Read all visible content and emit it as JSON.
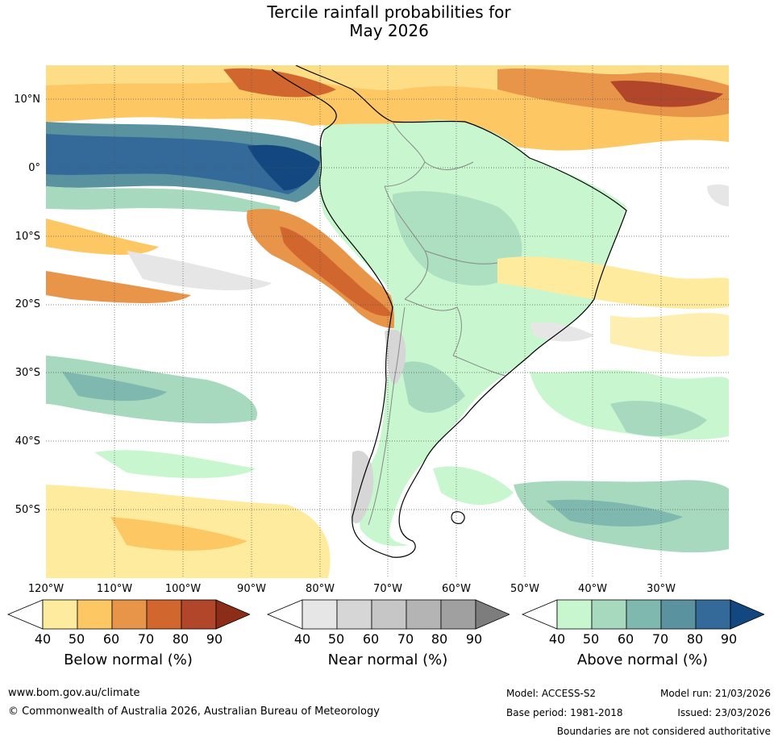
{
  "title": {
    "line1": "Tercile rainfall probabilities for",
    "line2": "May 2026"
  },
  "map": {
    "lat_labels": [
      "10°N",
      "0°",
      "10°S",
      "20°S",
      "30°S",
      "40°S",
      "50°S"
    ],
    "lon_labels": [
      "120°W",
      "110°W",
      "100°W",
      "90°W",
      "80°W",
      "70°W",
      "60°W",
      "50°W",
      "40°W",
      "30°W"
    ],
    "extent": {
      "lon_min": -120,
      "lon_max": -20,
      "lat_min": -60,
      "lat_max": 15
    },
    "region": "South America",
    "gridlines": true
  },
  "colorbars": [
    {
      "title": "Below normal (%)",
      "ticks": [
        "40",
        "50",
        "60",
        "70",
        "80",
        "90"
      ],
      "colors": [
        "#ffffff",
        "#feeb9d",
        "#fdc864",
        "#e8954a",
        "#d1672f",
        "#b1462a",
        "#8c2d1a"
      ]
    },
    {
      "title": "Near normal (%)",
      "ticks": [
        "40",
        "50",
        "60",
        "70",
        "80",
        "90"
      ],
      "colors": [
        "#ffffff",
        "#e6e6e6",
        "#d6d6d6",
        "#c6c6c6",
        "#b4b4b4",
        "#a0a0a0",
        "#7d7d7d"
      ]
    },
    {
      "title": "Above normal (%)",
      "ticks": [
        "40",
        "50",
        "60",
        "70",
        "80",
        "90"
      ],
      "colors": [
        "#ffffff",
        "#c8f7cf",
        "#a6d9bd",
        "#7fb8ae",
        "#5b92a0",
        "#336a9a",
        "#13477f"
      ]
    }
  ],
  "footer": {
    "website": "www.bom.gov.au/climate",
    "copyright": "© Commonwealth of Australia 2026, Australian Bureau of Meteorology",
    "model": "Model: ACCESS-S2",
    "model_run": "Model run: 21/03/2026",
    "base_period": "Base period: 1981-2018",
    "issued": "Issued: 23/03/2026",
    "disclaimer": "Boundaries are not considered authoritative"
  }
}
